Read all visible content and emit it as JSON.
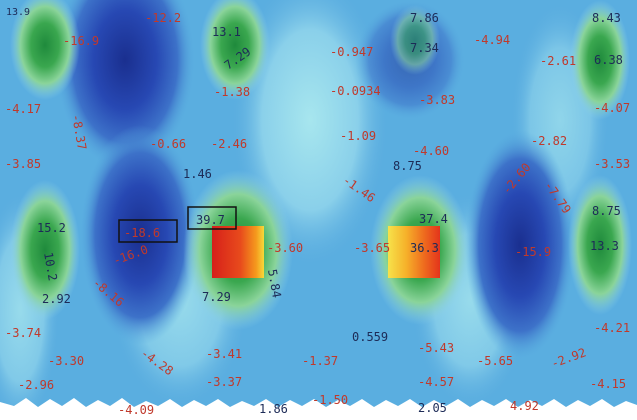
{
  "figure": {
    "background_color": "#58aadf",
    "colors": {
      "deep_blue": "#1e3fa6",
      "mid_blue": "#3f7fcf",
      "light_blue": "#8fd2ea",
      "cyan": "#9ee3e6",
      "green": "#2f9e4a",
      "light_green": "#7fd08a",
      "red": "#e3301c",
      "orange": "#f08a1a",
      "yellow": "#f6e23a",
      "label_red": "#c0392b",
      "label_dark": "#1d2b57"
    },
    "labels": [
      {
        "id": "l1",
        "text": "13.9",
        "color": "dark"
      },
      {
        "id": "l2",
        "text": "-16.9",
        "color": "red"
      },
      {
        "id": "l3",
        "text": "-12.2",
        "color": "red"
      },
      {
        "id": "l4",
        "text": "13.1",
        "color": "dark"
      },
      {
        "id": "l5",
        "text": "7.29",
        "color": "dark"
      },
      {
        "id": "l6",
        "text": "-1.38",
        "color": "red"
      },
      {
        "id": "l7",
        "text": "-0.947",
        "color": "red"
      },
      {
        "id": "l8",
        "text": "7.86",
        "color": "dark"
      },
      {
        "id": "l9",
        "text": "7.34",
        "color": "dark"
      },
      {
        "id": "l10",
        "text": "-4.94",
        "color": "red"
      },
      {
        "id": "l11",
        "text": "-2.61",
        "color": "red"
      },
      {
        "id": "l12",
        "text": "8.43",
        "color": "dark"
      },
      {
        "id": "l13",
        "text": "6.38",
        "color": "dark"
      },
      {
        "id": "l14",
        "text": "-0.0934",
        "color": "red"
      },
      {
        "id": "l15",
        "text": "-3.83",
        "color": "red"
      },
      {
        "id": "l16",
        "text": "-4.17",
        "color": "red"
      },
      {
        "id": "l17",
        "text": "-8.37",
        "color": "red"
      },
      {
        "id": "l18",
        "text": "-4.07",
        "color": "red"
      },
      {
        "id": "l19",
        "text": "-0.66",
        "color": "red"
      },
      {
        "id": "l20",
        "text": "-2.46",
        "color": "red"
      },
      {
        "id": "l21",
        "text": "-1.09",
        "color": "red"
      },
      {
        "id": "l22",
        "text": "-2.82",
        "color": "red"
      },
      {
        "id": "l23",
        "text": "-3.85",
        "color": "red"
      },
      {
        "id": "l24",
        "text": "-4.60",
        "color": "red"
      },
      {
        "id": "l25",
        "text": "-3.53",
        "color": "red"
      },
      {
        "id": "l26",
        "text": "1.46",
        "color": "dark"
      },
      {
        "id": "l27",
        "text": "-1.46",
        "color": "red"
      },
      {
        "id": "l28",
        "text": "8.75",
        "color": "dark"
      },
      {
        "id": "l29",
        "text": "-2.60",
        "color": "red"
      },
      {
        "id": "l30",
        "text": "-7.79",
        "color": "red"
      },
      {
        "id": "l31",
        "text": "8.75",
        "color": "dark"
      },
      {
        "id": "l32",
        "text": "15.2",
        "color": "dark"
      },
      {
        "id": "l33",
        "text": "-18.6",
        "color": "red"
      },
      {
        "id": "l34",
        "text": "39.7",
        "color": "dark"
      },
      {
        "id": "l35",
        "text": "37.4",
        "color": "dark"
      },
      {
        "id": "l36",
        "text": "10.2",
        "color": "dark"
      },
      {
        "id": "l37",
        "text": "-16.0",
        "color": "red"
      },
      {
        "id": "l38",
        "text": "-3.60",
        "color": "red"
      },
      {
        "id": "l39",
        "text": "-3.65",
        "color": "red"
      },
      {
        "id": "l40",
        "text": "36.3",
        "color": "dark"
      },
      {
        "id": "l41",
        "text": "-15.9",
        "color": "red"
      },
      {
        "id": "l42",
        "text": "13.3",
        "color": "dark"
      },
      {
        "id": "l43",
        "text": "2.92",
        "color": "dark"
      },
      {
        "id": "l44",
        "text": "-8.16",
        "color": "red"
      },
      {
        "id": "l45",
        "text": "5.84",
        "color": "dark"
      },
      {
        "id": "l46",
        "text": "7.29",
        "color": "dark"
      },
      {
        "id": "l47",
        "text": "-3.74",
        "color": "red"
      },
      {
        "id": "l48",
        "text": "0.559",
        "color": "dark"
      },
      {
        "id": "l49",
        "text": "-4.21",
        "color": "red"
      },
      {
        "id": "l50",
        "text": "-3.30",
        "color": "red"
      },
      {
        "id": "l51",
        "text": "-4.28",
        "color": "red"
      },
      {
        "id": "l52",
        "text": "-3.41",
        "color": "red"
      },
      {
        "id": "l53",
        "text": "-1.37",
        "color": "red"
      },
      {
        "id": "l54",
        "text": "-5.43",
        "color": "red"
      },
      {
        "id": "l55",
        "text": "-5.65",
        "color": "red"
      },
      {
        "id": "l56",
        "text": "-2.92",
        "color": "red"
      },
      {
        "id": "l57",
        "text": "-2.96",
        "color": "red"
      },
      {
        "id": "l58",
        "text": "-3.37",
        "color": "red"
      },
      {
        "id": "l59",
        "text": "-4.57",
        "color": "red"
      },
      {
        "id": "l60",
        "text": "-4.15",
        "color": "red"
      },
      {
        "id": "l61",
        "text": "-4.09",
        "color": "red"
      },
      {
        "id": "l62",
        "text": "1.86",
        "color": "dark"
      },
      {
        "id": "l63",
        "text": "-1.50",
        "color": "red"
      },
      {
        "id": "l64",
        "text": "2.05",
        "color": "dark"
      },
      {
        "id": "l65",
        "text": "4.92",
        "color": "red"
      }
    ]
  }
}
